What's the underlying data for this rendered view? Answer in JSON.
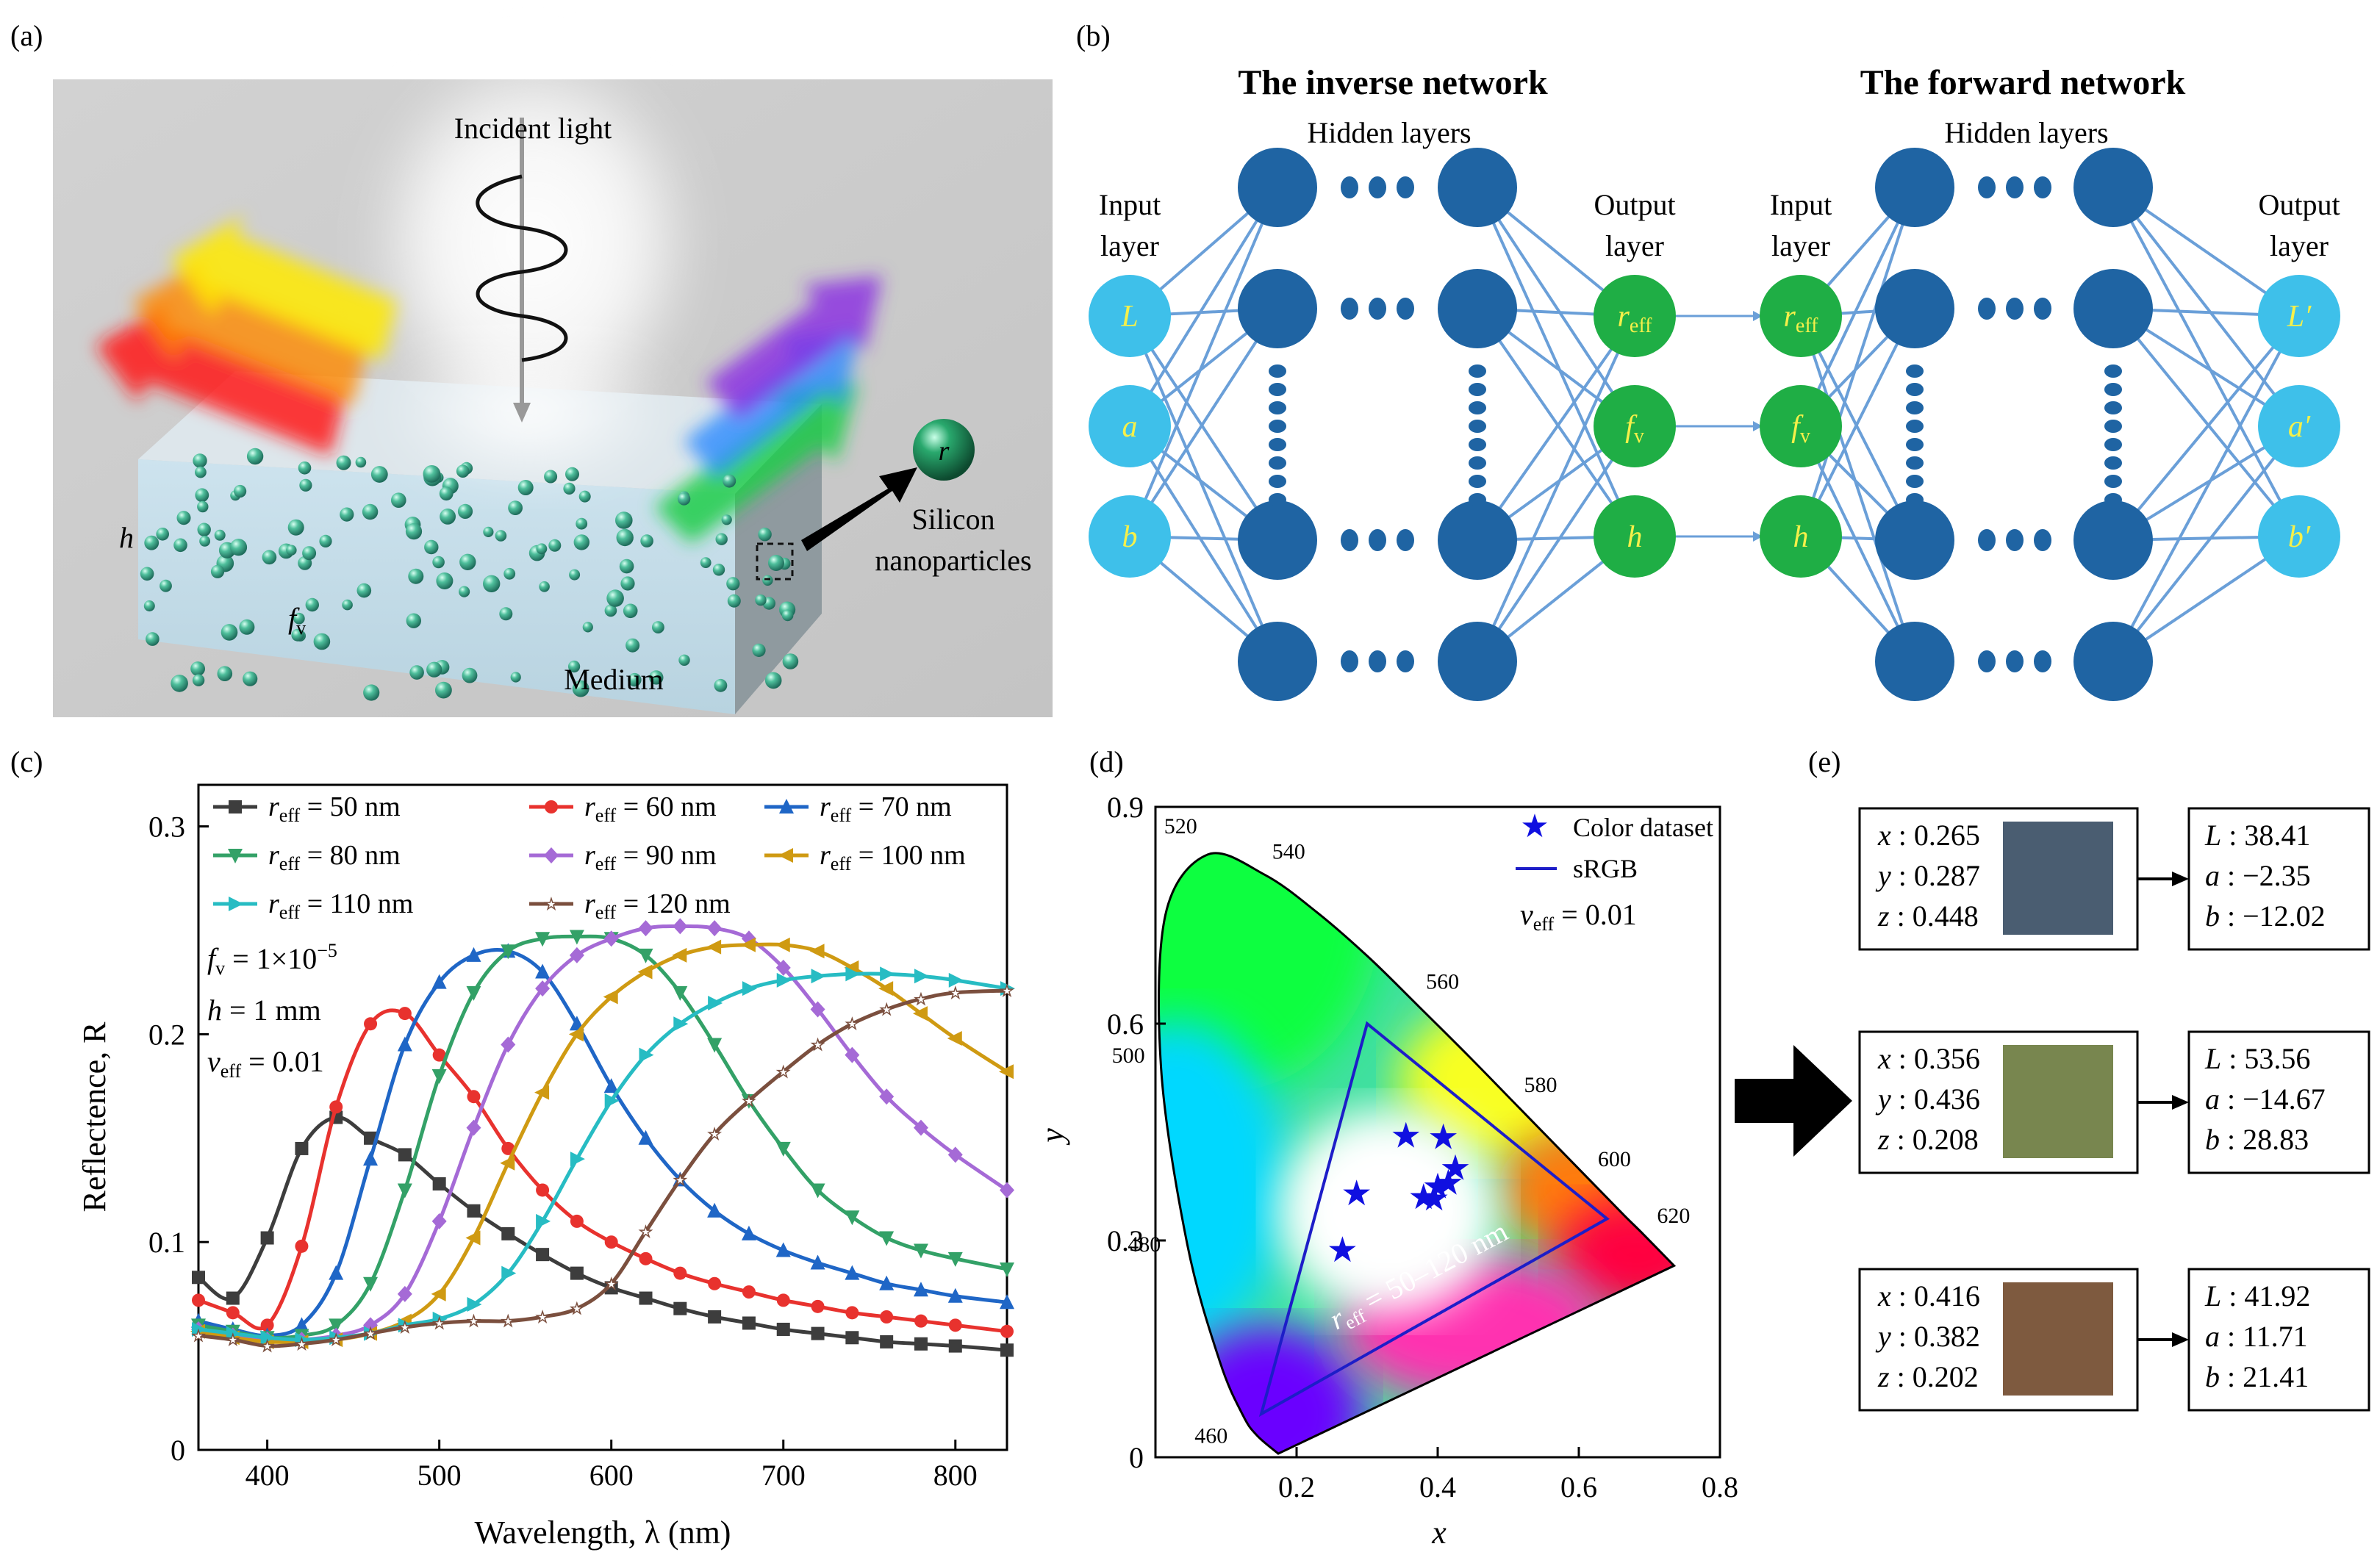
{
  "panels": {
    "a": {
      "label": "(a)",
      "incident_light": "Incident light",
      "h_label": "h",
      "fv_label": "f",
      "fv_sub": "v",
      "medium": "Medium",
      "silicon_line1": "Silicon",
      "silicon_line2": "nanoparticles",
      "r_label": "r"
    },
    "b": {
      "label": "(b)",
      "inverse_title": "The inverse network",
      "forward_title": "The forward network",
      "hidden_layers": "Hidden layers",
      "input_layer_line1": "Input",
      "input_layer_line2": "layer",
      "output_layer_line1": "Output",
      "output_layer_line2": "layer",
      "inverse_inputs": [
        "L",
        "a",
        "b"
      ],
      "inverse_outputs": [
        {
          "main": "r",
          "sub": "eff"
        },
        {
          "main": "f",
          "sub": "v"
        },
        {
          "main": "h",
          "sub": ""
        }
      ],
      "forward_inputs": [
        {
          "main": "r",
          "sub": "eff"
        },
        {
          "main": "f",
          "sub": "v"
        },
        {
          "main": "h",
          "sub": ""
        }
      ],
      "forward_outputs": [
        "L′",
        "a′",
        "b′"
      ]
    },
    "c": {
      "label": "(c)",
      "annotation": {
        "fv_text": "f",
        "fv_sub": "v",
        "fv_value": " = 1×10",
        "fv_exp": "−5",
        "h_text": "h",
        "h_value": " = 1 mm",
        "v_text": "v",
        "v_sub": "eff",
        "v_value": " = 0.01"
      }
    },
    "d": {
      "label": "(d)",
      "legend": {
        "stars": "Color dataset",
        "srgb": "sRGB",
        "v_text": "v",
        "v_sub": "eff",
        "v_value": " = 0.01"
      },
      "range_label": {
        "main": "r",
        "sub": "eff",
        "value": " = 50–120 nm"
      },
      "wavelength_ticks": [
        "520",
        "540",
        "560",
        "580",
        "600",
        "620",
        "500",
        "480",
        "460"
      ]
    },
    "e": {
      "label": "(e)",
      "rows": [
        {
          "x": "x : 0.265",
          "y": "y : 0.287",
          "z": "z : 0.448",
          "color": "#4a5d71",
          "L": "L : 38.41",
          "a": "a : −2.35",
          "b": "b : −12.02"
        },
        {
          "x": "x : 0.356",
          "y": "y : 0.436",
          "z": "z : 0.208",
          "color": "#78864f",
          "L": "L : 53.56",
          "a": "a : −14.67",
          "b": "b : 28.83"
        },
        {
          "x": "x : 0.416",
          "y": "y : 0.382",
          "z": "z : 0.202",
          "color": "#7e5a3f",
          "L": "L : 41.92",
          "a": "a : 11.71",
          "b": "b : 21.41"
        }
      ]
    }
  },
  "chart_data": [
    {
      "type": "line",
      "panel": "c",
      "title": "",
      "xlabel": "Wavelength, λ (nm)",
      "ylabel": "Reflectence, R",
      "xlim": [
        360,
        830
      ],
      "ylim": [
        0,
        0.32
      ],
      "xticks": [
        400,
        500,
        600,
        700,
        800
      ],
      "yticks": [
        0,
        0.1,
        0.2,
        0.3
      ],
      "ytick_labels": [
        "0",
        "0.1",
        "0.2",
        "0.3"
      ],
      "x": [
        360,
        380,
        400,
        420,
        440,
        460,
        480,
        500,
        520,
        540,
        560,
        580,
        600,
        620,
        640,
        660,
        680,
        700,
        720,
        740,
        760,
        780,
        800,
        830
      ],
      "series": [
        {
          "name_main": "r",
          "name_sub": "eff",
          "name_value": " = 50 nm",
          "color": "#3d3d3d",
          "marker": "square",
          "values": [
            0.083,
            0.073,
            0.102,
            0.145,
            0.16,
            0.15,
            0.142,
            0.128,
            0.115,
            0.104,
            0.094,
            0.085,
            0.078,
            0.073,
            0.068,
            0.064,
            0.061,
            0.058,
            0.056,
            0.054,
            0.052,
            0.051,
            0.05,
            0.048
          ]
        },
        {
          "name_main": "r",
          "name_sub": "eff",
          "name_value": " = 60 nm",
          "color": "#e8322e",
          "marker": "circle",
          "values": [
            0.072,
            0.066,
            0.06,
            0.098,
            0.165,
            0.205,
            0.21,
            0.19,
            0.17,
            0.145,
            0.125,
            0.11,
            0.1,
            0.092,
            0.085,
            0.08,
            0.076,
            0.072,
            0.069,
            0.066,
            0.064,
            0.062,
            0.06,
            0.057
          ]
        },
        {
          "name_main": "r",
          "name_sub": "eff",
          "name_value": " = 70 nm",
          "color": "#1f66c6",
          "marker": "triangle",
          "values": [
            0.062,
            0.058,
            0.055,
            0.06,
            0.085,
            0.14,
            0.195,
            0.225,
            0.238,
            0.24,
            0.23,
            0.205,
            0.175,
            0.15,
            0.13,
            0.115,
            0.104,
            0.096,
            0.09,
            0.085,
            0.08,
            0.077,
            0.074,
            0.071
          ]
        },
        {
          "name_main": "r",
          "name_sub": "eff",
          "name_value": " = 80 nm",
          "color": "#33a167",
          "marker": "down",
          "values": [
            0.06,
            0.057,
            0.054,
            0.055,
            0.06,
            0.08,
            0.125,
            0.18,
            0.22,
            0.24,
            0.246,
            0.247,
            0.246,
            0.238,
            0.22,
            0.195,
            0.168,
            0.145,
            0.125,
            0.112,
            0.102,
            0.096,
            0.092,
            0.087
          ]
        },
        {
          "name_main": "r",
          "name_sub": "eff",
          "name_value": " = 90 nm",
          "color": "#a56ad6",
          "marker": "diamond",
          "values": [
            0.058,
            0.055,
            0.053,
            0.053,
            0.055,
            0.06,
            0.075,
            0.11,
            0.155,
            0.195,
            0.222,
            0.238,
            0.246,
            0.251,
            0.252,
            0.251,
            0.246,
            0.232,
            0.212,
            0.19,
            0.17,
            0.155,
            0.142,
            0.125
          ]
        },
        {
          "name_main": "r",
          "name_sub": "eff",
          "name_value": " = 100 nm",
          "color": "#cf9a12",
          "marker": "left",
          "values": [
            0.057,
            0.054,
            0.052,
            0.052,
            0.053,
            0.056,
            0.062,
            0.075,
            0.102,
            0.138,
            0.172,
            0.2,
            0.218,
            0.23,
            0.238,
            0.242,
            0.243,
            0.243,
            0.24,
            0.232,
            0.222,
            0.21,
            0.198,
            0.182
          ]
        },
        {
          "name_main": "r",
          "name_sub": "eff",
          "name_value": " = 110 nm",
          "color": "#27bcc3",
          "marker": "right",
          "values": [
            0.058,
            0.056,
            0.054,
            0.053,
            0.054,
            0.056,
            0.06,
            0.063,
            0.07,
            0.085,
            0.11,
            0.14,
            0.168,
            0.19,
            0.205,
            0.215,
            0.222,
            0.226,
            0.228,
            0.229,
            0.229,
            0.228,
            0.226,
            0.222
          ]
        },
        {
          "name_main": "r",
          "name_sub": "eff",
          "name_value": " = 120 nm",
          "color": "#7b4f3e",
          "marker": "star",
          "values": [
            0.055,
            0.053,
            0.05,
            0.051,
            0.053,
            0.056,
            0.059,
            0.061,
            0.062,
            0.062,
            0.064,
            0.068,
            0.08,
            0.105,
            0.13,
            0.152,
            0.168,
            0.182,
            0.195,
            0.205,
            0.212,
            0.217,
            0.22,
            0.221
          ]
        }
      ]
    },
    {
      "type": "scatter",
      "panel": "d",
      "title": "",
      "xlabel": "x",
      "ylabel": "y",
      "xlim": [
        0,
        0.8
      ],
      "ylim": [
        0,
        0.9
      ],
      "xticks": [
        0.2,
        0.4,
        0.6,
        0.8
      ],
      "yticks": [
        0,
        0.3,
        0.6,
        0.9
      ],
      "xtick_labels": [
        "0.2",
        "0.4",
        "0.6",
        "0.8"
      ],
      "ytick_labels": [
        "0",
        "0.3",
        "0.6",
        "0.9"
      ],
      "series": [
        {
          "name": "Color dataset",
          "points": [
            [
              0.265,
              0.287
            ],
            [
              0.285,
              0.365
            ],
            [
              0.355,
              0.445
            ],
            [
              0.408,
              0.443
            ],
            [
              0.425,
              0.4
            ],
            [
              0.38,
              0.36
            ],
            [
              0.4,
              0.375
            ],
            [
              0.415,
              0.38
            ],
            [
              0.395,
              0.358
            ]
          ]
        },
        {
          "name": "sRGB",
          "points": [
            [
              0.64,
              0.33
            ],
            [
              0.3,
              0.6
            ],
            [
              0.15,
              0.06
            ]
          ]
        }
      ]
    }
  ]
}
